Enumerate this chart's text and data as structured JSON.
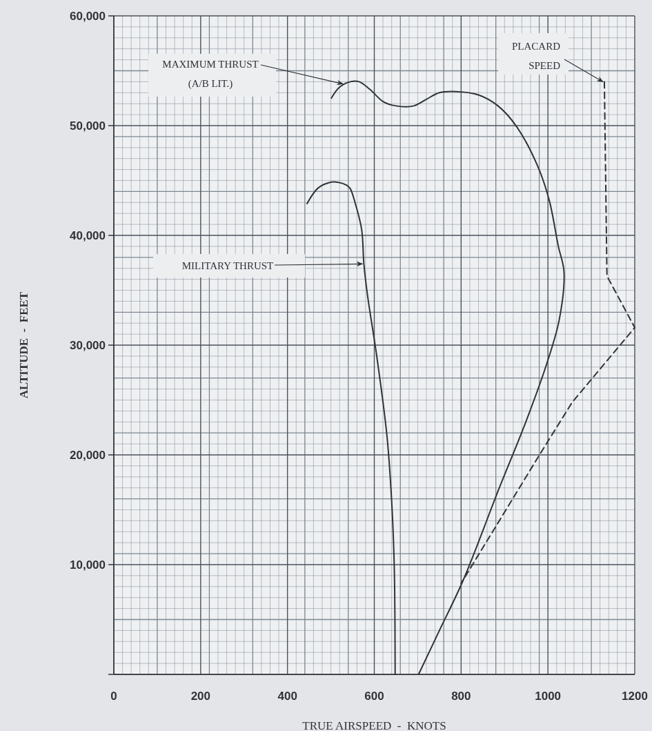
{
  "chart_data": {
    "type": "line",
    "xlabel": "TRUE AIRSPEED  -  KNOTS",
    "ylabel": "ALTITUDE  -  FEET",
    "xlim": [
      0,
      1200
    ],
    "ylim": [
      0,
      60000
    ],
    "xticks": [
      0,
      200,
      400,
      600,
      800,
      1000,
      1200
    ],
    "yticks": [
      {
        "value": 0,
        "label": null
      },
      {
        "value": 10000,
        "label": "10,000"
      },
      {
        "value": 20000,
        "label": "20,000"
      },
      {
        "value": 30000,
        "label": "30,000"
      },
      {
        "value": 40000,
        "label": "40,000"
      },
      {
        "value": 50000,
        "label": "50,000"
      },
      {
        "value": 60000,
        "label": "60,000"
      }
    ],
    "grid": true,
    "series": [
      {
        "color": "#2f3338",
        "line_style": "solid",
        "x": [
          501,
          520,
          545,
          565,
          590,
          620,
          650,
          691,
          720,
          750,
          789,
          840,
          885,
          928,
          976,
          1003,
          1024,
          1037,
          1026,
          998,
          949,
          888,
          805,
          750,
          702
        ],
        "values": [
          52500,
          53500,
          54000,
          54000,
          53300,
          52200,
          51800,
          51800,
          52400,
          53000,
          53100,
          52800,
          51800,
          49900,
          46350,
          43200,
          39000,
          36700,
          32300,
          28400,
          23000,
          17000,
          8600,
          4000,
          0
        ]
      },
      {
        "color": "#2f3338",
        "line_style": "solid",
        "x": [
          445,
          470,
          495,
          515,
          535,
          544,
          557,
          571,
          576,
          584,
          606,
          629,
          640,
          646,
          648
        ],
        "values": [
          42900,
          44300,
          44800,
          44850,
          44600,
          44300,
          42800,
          40500,
          37400,
          34650,
          28900,
          21800,
          15800,
          9800,
          0
        ]
      },
      {
        "color": "#2f3338",
        "line_style": "dashed",
        "x": [
          1130,
          1136,
          1200,
          1056,
          979,
          800
        ],
        "values": [
          54000,
          36300,
          31600,
          24800,
          19900,
          8300
        ]
      }
    ],
    "annotations": [
      {
        "text": "MAXIMUM THRUST\n(A/B LIT.)",
        "x": 531,
        "y": 53800
      },
      {
        "text": "MILITARY THRUST",
        "x": 576,
        "y": 37400
      },
      {
        "text": "PLACARD\nSPEED",
        "x": 1130,
        "y": 54000
      }
    ]
  }
}
